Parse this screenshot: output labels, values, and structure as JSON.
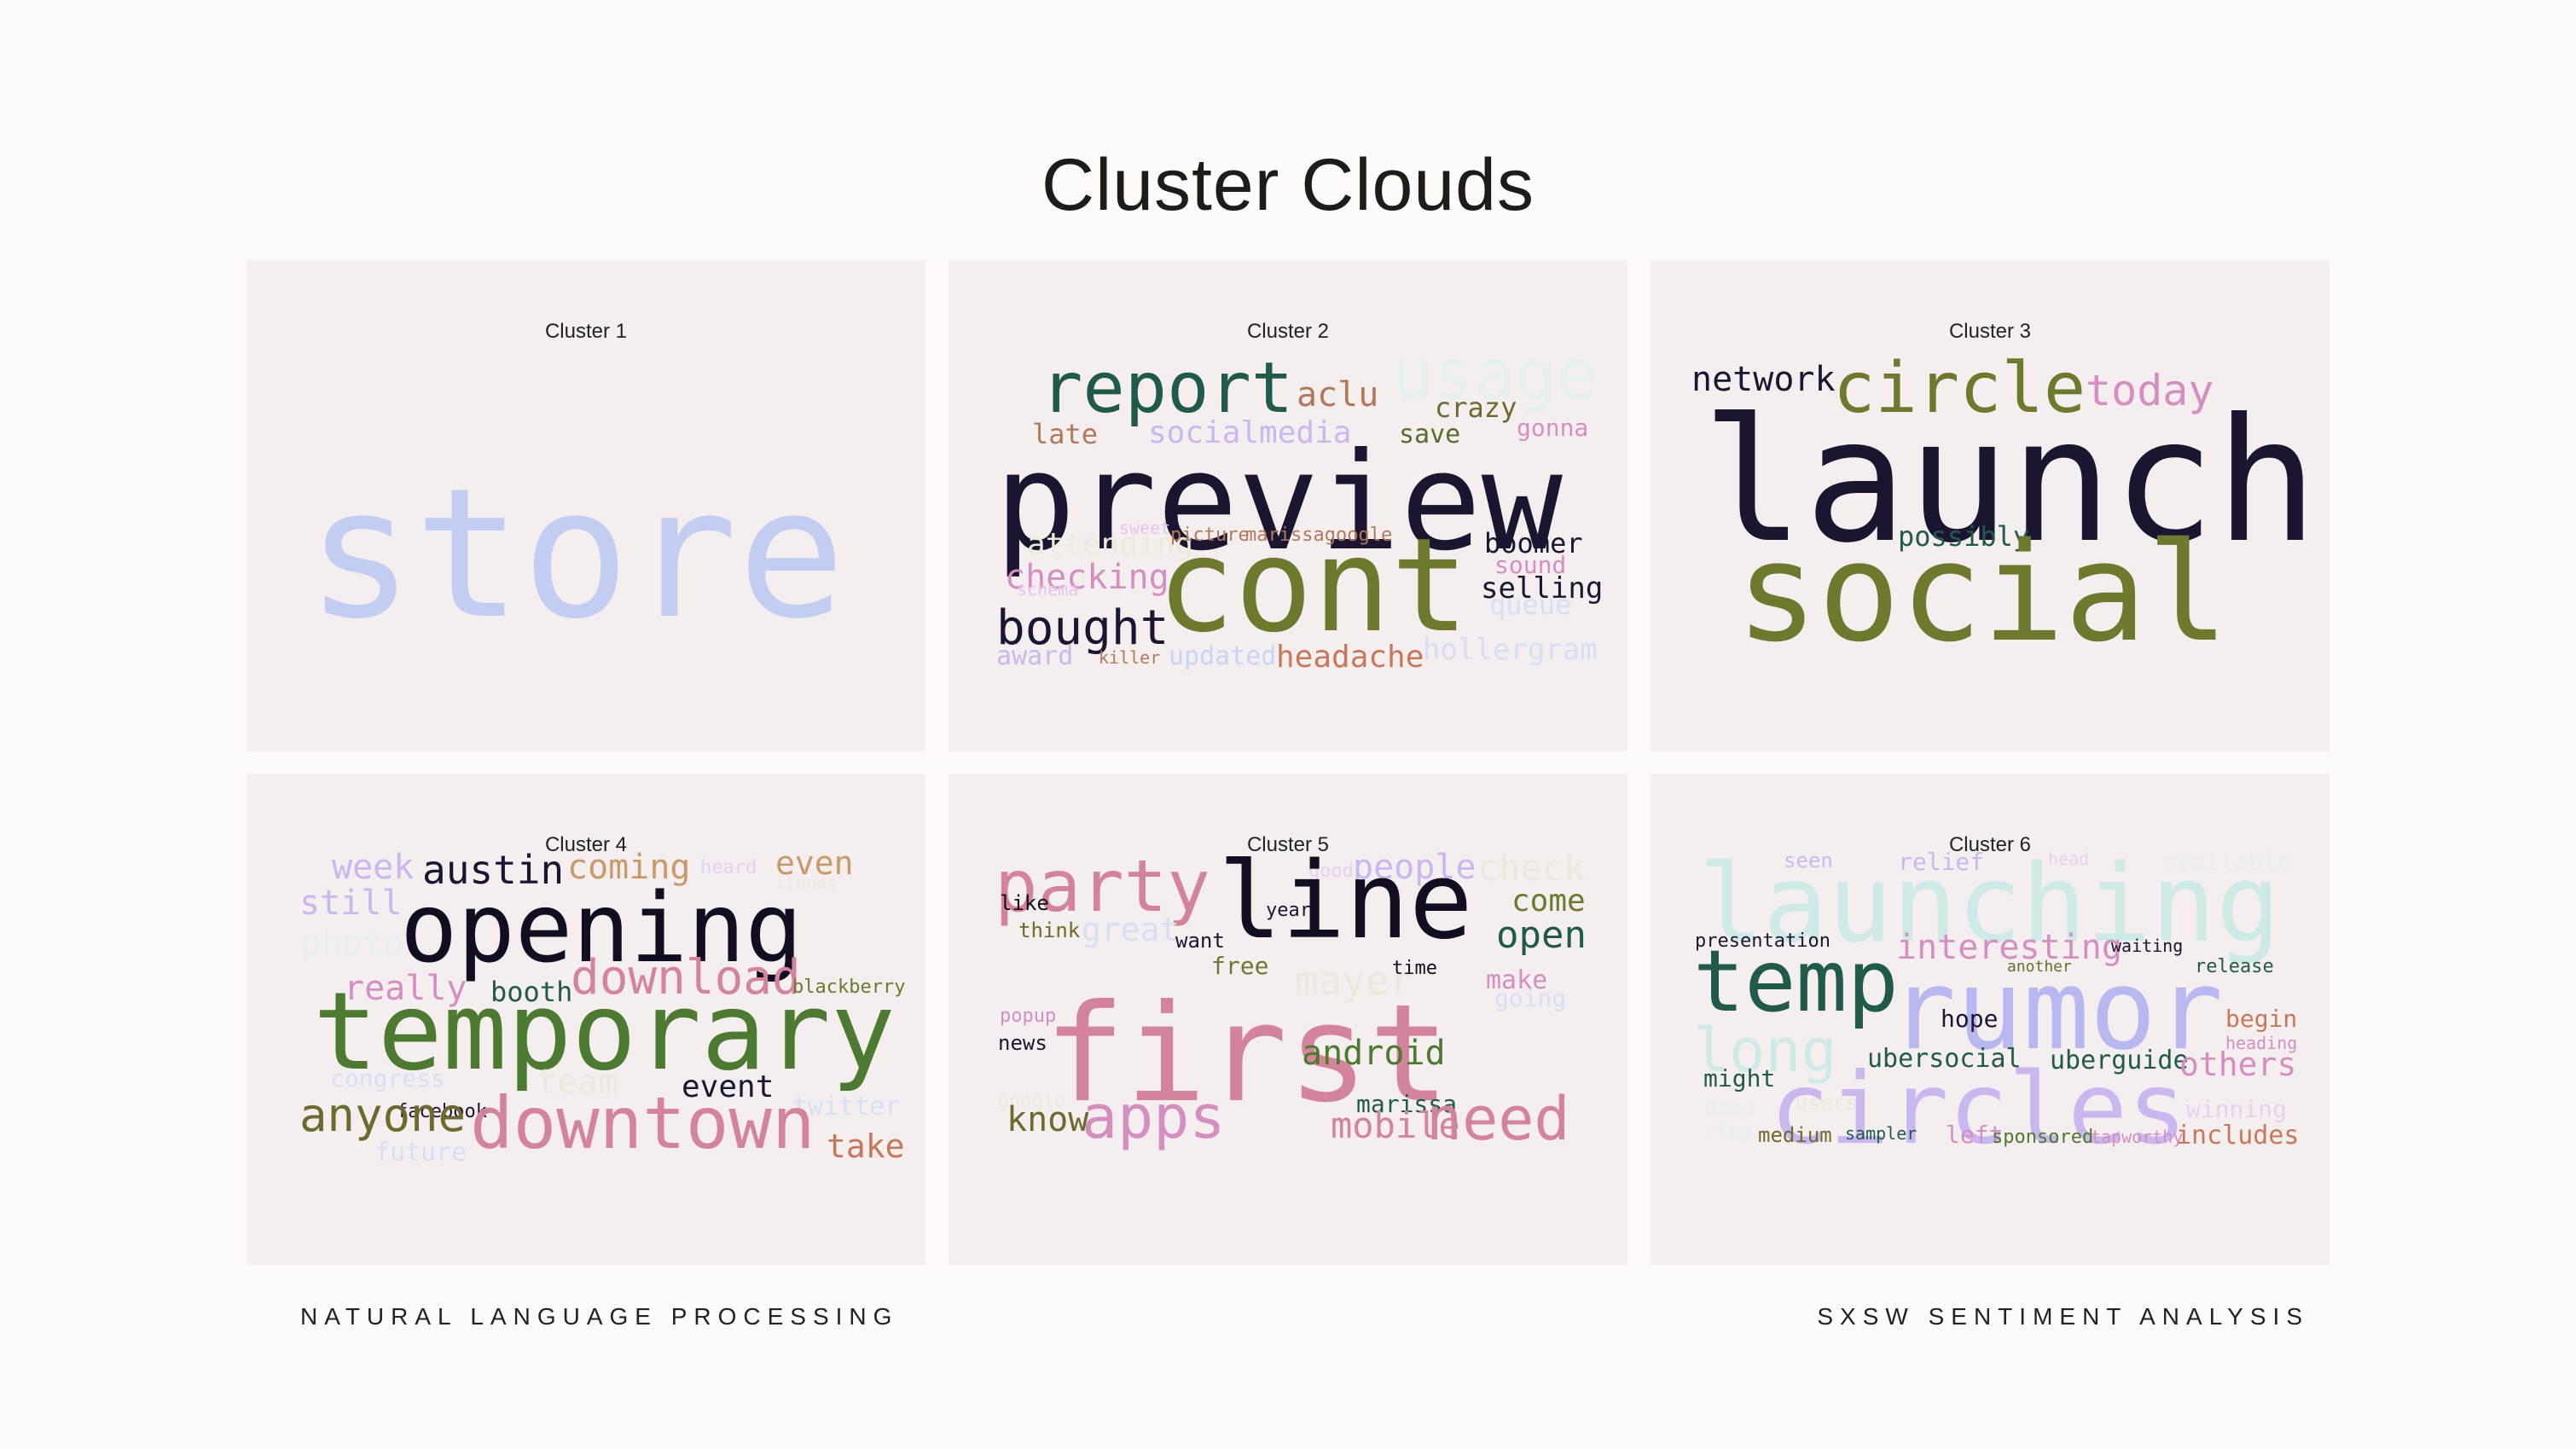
{
  "title": "Cluster Clouds",
  "footer": {
    "left": "NATURAL LANGUAGE PROCESSING",
    "right": "SXSW SENTIMENT ANALYSIS"
  },
  "panels": [
    {
      "title": "Cluster 1",
      "words": [
        {
          "text": "store",
          "color": "#c3cdf2"
        }
      ]
    },
    {
      "title": "Cluster 2",
      "words": [
        {
          "text": "report",
          "color": "#1f5a4a"
        },
        {
          "text": "aclu",
          "color": "#b07a5a"
        },
        {
          "text": "usage",
          "color": "#e4f1ee"
        },
        {
          "text": "crazy",
          "color": "#6b6b2e"
        },
        {
          "text": "late",
          "color": "#b07a5a"
        },
        {
          "text": "socialmedia",
          "color": "#c9b8f0"
        },
        {
          "text": "save",
          "color": "#5b6b2e"
        },
        {
          "text": "gonna",
          "color": "#d48fc0"
        },
        {
          "text": "preview",
          "color": "#1a1530"
        },
        {
          "text": "sweet",
          "color": "#e4c4ef"
        },
        {
          "text": "attending",
          "color": "#ecebd8"
        },
        {
          "text": "picture",
          "color": "#b07a5a"
        },
        {
          "text": "marissagoogle",
          "color": "#b07a5a"
        },
        {
          "text": "boomer",
          "color": "#1a1530"
        },
        {
          "text": "sound",
          "color": "#d48fc0"
        },
        {
          "text": "checking",
          "color": "#d48fc0"
        },
        {
          "text": "cont",
          "color": "#6d7a2e"
        },
        {
          "text": "selling",
          "color": "#1a1530"
        },
        {
          "text": "schema",
          "color": "#e4c4ef"
        },
        {
          "text": "queue",
          "color": "#d6e0f5"
        },
        {
          "text": "bought",
          "color": "#1a1530"
        },
        {
          "text": "award",
          "color": "#c9b8f0"
        },
        {
          "text": "killer",
          "color": "#b07a5a"
        },
        {
          "text": "updated",
          "color": "#c6d5f5"
        },
        {
          "text": "headache",
          "color": "#c8785a"
        },
        {
          "text": "hollergram",
          "color": "#d6e0f5"
        }
      ]
    },
    {
      "title": "Cluster 3",
      "words": [
        {
          "text": "network",
          "color": "#1a1530"
        },
        {
          "text": "circle",
          "color": "#6d7a2e"
        },
        {
          "text": "today",
          "color": "#d48fc0"
        },
        {
          "text": "launch",
          "color": "#1a1530"
        },
        {
          "text": "possibly",
          "color": "#1f5a4a"
        },
        {
          "text": "social",
          "color": "#6d7a2e"
        }
      ]
    },
    {
      "title": "Cluster 4",
      "words": [
        {
          "text": "week",
          "color": "#c9b8f0"
        },
        {
          "text": "austin",
          "color": "#1a1530"
        },
        {
          "text": "coming",
          "color": "#c89a6a"
        },
        {
          "text": "heard",
          "color": "#e4d2f0"
        },
        {
          "text": "even",
          "color": "#c89a6a"
        },
        {
          "text": "itunes",
          "color": "#ece8e0"
        },
        {
          "text": "still",
          "color": "#c9b8f0"
        },
        {
          "text": "opening",
          "color": "#120d20"
        },
        {
          "text": "photo",
          "color": "#e4f1ee"
        },
        {
          "text": "really",
          "color": "#d48fc0"
        },
        {
          "text": "booth",
          "color": "#1f5a4a"
        },
        {
          "text": "download",
          "color": "#d4849a"
        },
        {
          "text": "blackberry",
          "color": "#6d7a2e"
        },
        {
          "text": "temporary",
          "color": "#4c7a30"
        },
        {
          "text": "congress",
          "color": "#d6e0f5"
        },
        {
          "text": "team",
          "color": "#ece8e0"
        },
        {
          "text": "event",
          "color": "#1a1530"
        },
        {
          "text": "twitter",
          "color": "#d6e0f5"
        },
        {
          "text": "facebook",
          "color": "#1a1530"
        },
        {
          "text": "anyone",
          "color": "#6d6a2e"
        },
        {
          "text": "downtown",
          "color": "#d4849a"
        },
        {
          "text": "take",
          "color": "#c8785a"
        },
        {
          "text": "future",
          "color": "#d6e0f5"
        }
      ]
    },
    {
      "title": "Cluster 5",
      "words": [
        {
          "text": "party",
          "color": "#d4849a"
        },
        {
          "text": "good",
          "color": "#e4d2f0"
        },
        {
          "text": "people",
          "color": "#c9b8f0"
        },
        {
          "text": "check",
          "color": "#ece8e0"
        },
        {
          "text": "year",
          "color": "#1a1530"
        },
        {
          "text": "line",
          "color": "#120d20"
        },
        {
          "text": "come",
          "color": "#6d7a2e"
        },
        {
          "text": "think",
          "color": "#6d6a2e"
        },
        {
          "text": "great",
          "color": "#d6e0f5"
        },
        {
          "text": "want",
          "color": "#1a1530"
        },
        {
          "text": "open",
          "color": "#1f5a4a"
        },
        {
          "text": "free",
          "color": "#6d7a2e"
        },
        {
          "text": "mayer",
          "color": "#ece8e0"
        },
        {
          "text": "time",
          "color": "#120d20"
        },
        {
          "text": "make",
          "color": "#d48fc0"
        },
        {
          "text": "going",
          "color": "#d6e0f5"
        },
        {
          "text": "popup",
          "color": "#d48fc0"
        },
        {
          "text": "news",
          "color": "#1a1530"
        },
        {
          "text": "first",
          "color": "#d4849a"
        },
        {
          "text": "android",
          "color": "#4c7a30"
        },
        {
          "text": "google",
          "color": "#ece8e0"
        },
        {
          "text": "marissa",
          "color": "#1f5a4a"
        },
        {
          "text": "know",
          "color": "#6d6a2e"
        },
        {
          "text": "apps",
          "color": "#d48fc0"
        },
        {
          "text": "mobile",
          "color": "#d4849a"
        },
        {
          "text": "need",
          "color": "#d4849a"
        },
        {
          "text": "like",
          "color": "#120d20"
        }
      ]
    },
    {
      "title": "Cluster 6",
      "words": [
        {
          "text": "seen",
          "color": "#c9b8f0"
        },
        {
          "text": "relief",
          "color": "#c9b8f0"
        },
        {
          "text": "head",
          "color": "#e4d2f0"
        },
        {
          "text": "available",
          "color": "#e4f1ee"
        },
        {
          "text": "launching",
          "color": "#cdeae7"
        },
        {
          "text": "presentation",
          "color": "#1a1530"
        },
        {
          "text": "interesting",
          "color": "#d48fc0"
        },
        {
          "text": "waiting",
          "color": "#1a1530"
        },
        {
          "text": "another",
          "color": "#6d6a2e"
        },
        {
          "text": "release",
          "color": "#1f5a4a"
        },
        {
          "text": "temp",
          "color": "#1f5a4a"
        },
        {
          "text": "rumor",
          "color": "#b8b8f0"
        },
        {
          "text": "begin",
          "color": "#c8785a"
        },
        {
          "text": "heading",
          "color": "#d48fc0"
        },
        {
          "text": "hope",
          "color": "#1a1530"
        },
        {
          "text": "long",
          "color": "#cdeae7"
        },
        {
          "text": "ubersocial",
          "color": "#1f5a4a"
        },
        {
          "text": "uberguide",
          "color": "#1f5a4a"
        },
        {
          "text": "others",
          "color": "#d48fc0"
        },
        {
          "text": "might",
          "color": "#1f5a4a"
        },
        {
          "text": "circles",
          "color": "#c9b8f0"
        },
        {
          "text": "users",
          "color": "#ecebd8"
        },
        {
          "text": "demo",
          "color": "#e4f1ee"
        },
        {
          "text": "winning",
          "color": "#e4d2f0"
        },
        {
          "text": "stop",
          "color": "#e4f1ee"
        },
        {
          "text": "medium",
          "color": "#6d6a2e"
        },
        {
          "text": "sampler",
          "color": "#1f5a4a"
        },
        {
          "text": "left",
          "color": "#d48fc0"
        },
        {
          "text": "sponsored",
          "color": "#4c7a30"
        },
        {
          "text": "tapworthy",
          "color": "#d48fc0"
        },
        {
          "text": "includes",
          "color": "#c8785a"
        }
      ]
    }
  ]
}
